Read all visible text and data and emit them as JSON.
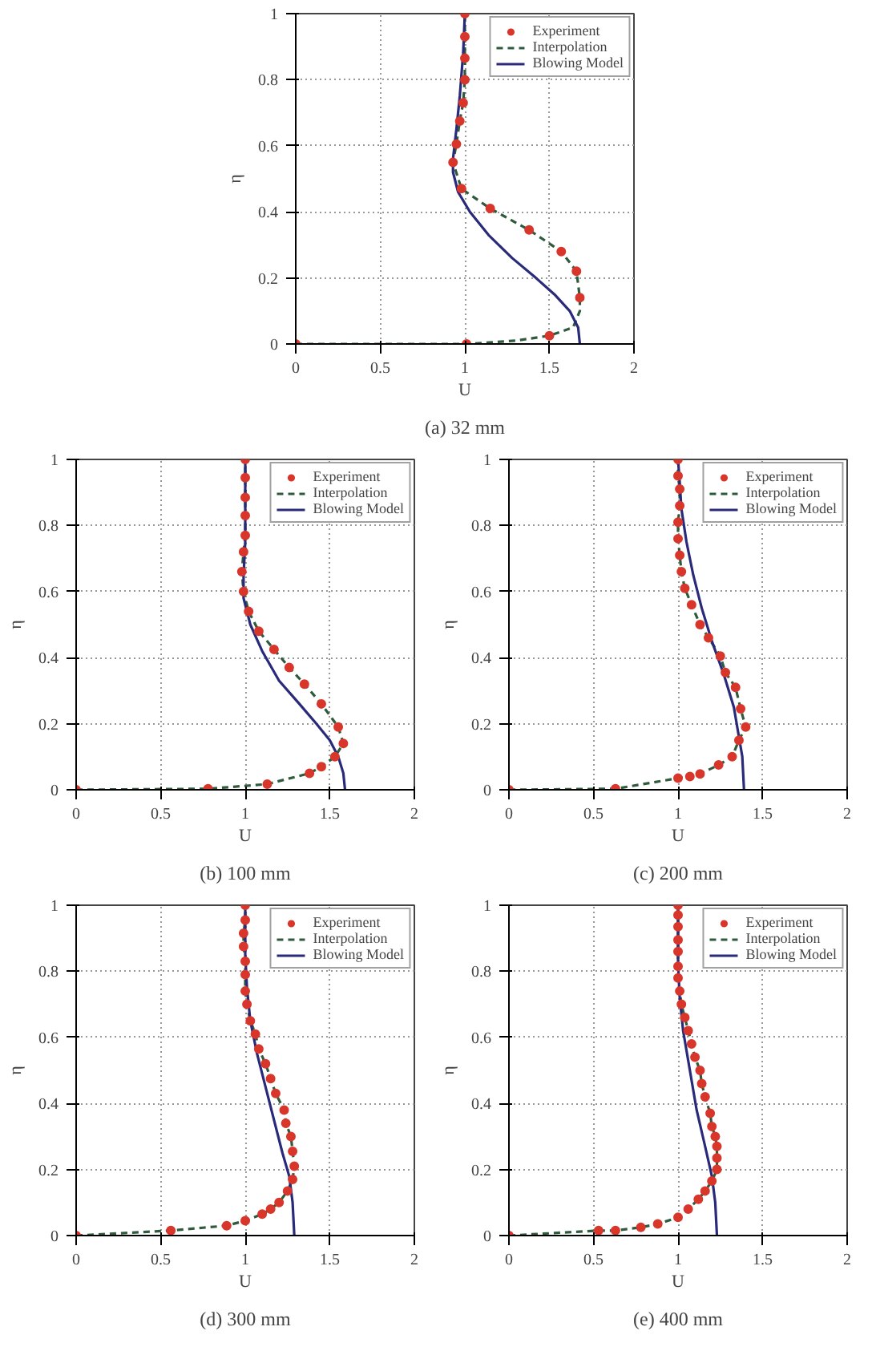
{
  "chart_data": [
    {
      "type": "line",
      "title": "(a) 32 mm",
      "xlabel": "U",
      "ylabel": "η",
      "xlim": [
        0,
        2
      ],
      "ylim": [
        0,
        1
      ],
      "xticks": [
        0,
        0.5,
        1,
        1.5,
        2
      ],
      "yticks": [
        0,
        0.2,
        0.4,
        0.6,
        0.8,
        1
      ],
      "grid": true,
      "legend": "top right",
      "series": [
        {
          "name": "Experiment",
          "type": "scatter",
          "marker": "circle",
          "color": "#d9362b",
          "x": [
            0,
            1.01,
            1.5,
            1.68,
            1.66,
            1.57,
            1.38,
            1.15,
            0.98,
            0.93,
            0.95,
            0.97,
            0.99,
            1.0,
            1.0,
            1.0,
            1.0
          ],
          "values": [
            0,
            0,
            0.025,
            0.14,
            0.22,
            0.28,
            0.345,
            0.41,
            0.47,
            0.55,
            0.605,
            0.675,
            0.73,
            0.8,
            0.865,
            0.93,
            1.0
          ]
        },
        {
          "name": "Interpolation",
          "type": "line",
          "line_style": "dashed",
          "color": "#2f5a3c",
          "x": [
            0,
            1.01,
            1.3,
            1.5,
            1.64,
            1.68,
            1.68,
            1.66,
            1.57,
            1.38,
            1.15,
            0.98,
            0.93,
            0.95,
            0.97,
            0.99,
            1.0,
            1.0,
            1.0,
            1.0
          ],
          "values": [
            0,
            0,
            0.01,
            0.025,
            0.05,
            0.1,
            0.14,
            0.22,
            0.28,
            0.345,
            0.41,
            0.47,
            0.55,
            0.605,
            0.675,
            0.73,
            0.8,
            0.865,
            0.93,
            1.0
          ]
        },
        {
          "name": "Blowing Model",
          "type": "line",
          "line_style": "solid",
          "color": "#2a2a7a",
          "x": [
            1.68,
            1.67,
            1.62,
            1.53,
            1.42,
            1.28,
            1.14,
            1.03,
            0.96,
            0.93,
            0.93,
            0.95,
            0.97,
            0.99,
            1.0
          ],
          "values": [
            0,
            0.05,
            0.1,
            0.15,
            0.2,
            0.26,
            0.33,
            0.4,
            0.46,
            0.52,
            0.56,
            0.65,
            0.75,
            0.88,
            1.0
          ]
        }
      ]
    },
    {
      "type": "line",
      "title": "(b) 100 mm",
      "xlabel": "U",
      "ylabel": "η",
      "xlim": [
        0,
        2
      ],
      "ylim": [
        0,
        1
      ],
      "xticks": [
        0,
        0.5,
        1,
        1.5,
        2
      ],
      "yticks": [
        0,
        0.2,
        0.4,
        0.6,
        0.8,
        1
      ],
      "grid": true,
      "legend": "top right",
      "series": [
        {
          "name": "Experiment",
          "type": "scatter",
          "marker": "circle",
          "color": "#d9362b",
          "x": [
            0,
            0.78,
            1.13,
            1.38,
            1.45,
            1.53,
            1.58,
            1.55,
            1.45,
            1.35,
            1.26,
            1.17,
            1.08,
            1.02,
            0.99,
            0.98,
            0.99,
            1.0,
            1.0,
            1.0,
            1.0,
            1.0
          ],
          "values": [
            0,
            0.003,
            0.017,
            0.05,
            0.07,
            0.1,
            0.14,
            0.19,
            0.26,
            0.32,
            0.37,
            0.425,
            0.48,
            0.54,
            0.6,
            0.66,
            0.72,
            0.77,
            0.83,
            0.885,
            0.945,
            1.0
          ]
        },
        {
          "name": "Interpolation",
          "type": "line",
          "line_style": "dashed",
          "color": "#2f5a3c",
          "x": [
            0,
            0.78,
            1.13,
            1.38,
            1.45,
            1.53,
            1.58,
            1.55,
            1.45,
            1.35,
            1.26,
            1.17,
            1.08,
            1.02,
            0.99,
            0.98,
            0.99,
            1.0,
            1.0,
            1.0,
            1.0,
            1.0
          ],
          "values": [
            0,
            0.003,
            0.017,
            0.05,
            0.07,
            0.1,
            0.14,
            0.19,
            0.26,
            0.32,
            0.37,
            0.425,
            0.48,
            0.54,
            0.6,
            0.66,
            0.72,
            0.77,
            0.83,
            0.885,
            0.945,
            1.0
          ]
        },
        {
          "name": "Blowing Model",
          "type": "line",
          "line_style": "solid",
          "color": "#2a2a7a",
          "x": [
            1.59,
            1.58,
            1.55,
            1.5,
            1.42,
            1.32,
            1.2,
            1.1,
            1.03,
            0.99,
            0.99,
            1.0,
            1.0
          ],
          "values": [
            0,
            0.05,
            0.1,
            0.15,
            0.2,
            0.26,
            0.33,
            0.42,
            0.5,
            0.58,
            0.65,
            0.75,
            1.0
          ]
        }
      ]
    },
    {
      "type": "line",
      "title": "(c) 200 mm",
      "xlabel": "U",
      "ylabel": "η",
      "xlim": [
        0,
        2
      ],
      "ylim": [
        0,
        1
      ],
      "xticks": [
        0,
        0.5,
        1,
        1.5,
        2
      ],
      "yticks": [
        0,
        0.2,
        0.4,
        0.6,
        0.8,
        1
      ],
      "grid": true,
      "legend": "top right",
      "series": [
        {
          "name": "Experiment",
          "type": "scatter",
          "marker": "circle",
          "color": "#d9362b",
          "x": [
            0,
            0.63,
            1.0,
            1.07,
            1.13,
            1.24,
            1.32,
            1.36,
            1.4,
            1.37,
            1.34,
            1.28,
            1.25,
            1.18,
            1.13,
            1.08,
            1.04,
            1.02,
            1.01,
            1.0,
            1.0,
            1.01,
            1.01,
            1.0,
            1.0
          ],
          "values": [
            0,
            0.003,
            0.035,
            0.04,
            0.048,
            0.075,
            0.1,
            0.15,
            0.19,
            0.245,
            0.31,
            0.355,
            0.405,
            0.46,
            0.5,
            0.56,
            0.61,
            0.66,
            0.71,
            0.76,
            0.81,
            0.86,
            0.91,
            0.95,
            1.0
          ]
        },
        {
          "name": "Interpolation",
          "type": "line",
          "line_style": "dashed",
          "color": "#2f5a3c",
          "x": [
            0,
            0.63,
            1.0,
            1.07,
            1.13,
            1.24,
            1.32,
            1.36,
            1.4,
            1.37,
            1.34,
            1.28,
            1.25,
            1.18,
            1.13,
            1.08,
            1.04,
            1.02,
            1.01,
            1.0,
            1.0,
            1.01,
            1.01,
            1.0,
            1.0
          ],
          "values": [
            0,
            0.003,
            0.035,
            0.04,
            0.048,
            0.075,
            0.1,
            0.15,
            0.19,
            0.245,
            0.31,
            0.355,
            0.405,
            0.46,
            0.5,
            0.56,
            0.61,
            0.66,
            0.71,
            0.76,
            0.81,
            0.86,
            0.91,
            0.95,
            1.0
          ]
        },
        {
          "name": "Blowing Model",
          "type": "line",
          "line_style": "solid",
          "color": "#2a2a7a",
          "x": [
            1.39,
            1.38,
            1.36,
            1.33,
            1.27,
            1.2,
            1.14,
            1.09,
            1.05,
            1.02,
            1.01,
            1.0
          ],
          "values": [
            0,
            0.1,
            0.16,
            0.25,
            0.35,
            0.45,
            0.55,
            0.65,
            0.75,
            0.85,
            0.93,
            1.0
          ]
        }
      ]
    },
    {
      "type": "line",
      "title": "(d) 300 mm",
      "xlabel": "U",
      "ylabel": "η",
      "xlim": [
        0,
        2
      ],
      "ylim": [
        0,
        1
      ],
      "xticks": [
        0,
        0.5,
        1,
        1.5,
        2
      ],
      "yticks": [
        0,
        0.2,
        0.4,
        0.6,
        0.8,
        1
      ],
      "grid": true,
      "legend": "top right",
      "series": [
        {
          "name": "Experiment",
          "type": "scatter",
          "marker": "circle",
          "color": "#d9362b",
          "x": [
            0,
            0.56,
            0.89,
            1.0,
            1.1,
            1.15,
            1.2,
            1.25,
            1.28,
            1.29,
            1.28,
            1.27,
            1.24,
            1.23,
            1.18,
            1.15,
            1.12,
            1.08,
            1.06,
            1.03,
            1.01,
            1.0,
            1.0,
            1.0,
            0.99,
            0.99,
            1.0,
            1.0
          ],
          "values": [
            0,
            0.015,
            0.03,
            0.045,
            0.065,
            0.08,
            0.1,
            0.135,
            0.17,
            0.21,
            0.255,
            0.3,
            0.34,
            0.38,
            0.43,
            0.475,
            0.52,
            0.565,
            0.61,
            0.65,
            0.7,
            0.74,
            0.79,
            0.83,
            0.875,
            0.915,
            0.955,
            1.0
          ]
        },
        {
          "name": "Interpolation",
          "type": "line",
          "line_style": "dashed",
          "color": "#2f5a3c",
          "x": [
            0,
            0.56,
            0.89,
            1.0,
            1.1,
            1.15,
            1.2,
            1.25,
            1.28,
            1.29,
            1.28,
            1.27,
            1.24,
            1.23,
            1.18,
            1.15,
            1.12,
            1.08,
            1.06,
            1.03,
            1.01,
            1.0,
            1.0,
            1.0,
            0.99,
            0.99,
            1.0,
            1.0
          ],
          "values": [
            0,
            0.015,
            0.03,
            0.045,
            0.065,
            0.08,
            0.1,
            0.135,
            0.17,
            0.21,
            0.255,
            0.3,
            0.34,
            0.38,
            0.43,
            0.475,
            0.52,
            0.565,
            0.61,
            0.65,
            0.7,
            0.74,
            0.79,
            0.83,
            0.875,
            0.915,
            0.955,
            1.0
          ]
        },
        {
          "name": "Blowing Model",
          "type": "line",
          "line_style": "solid",
          "color": "#2a2a7a",
          "x": [
            1.29,
            1.28,
            1.26,
            1.22,
            1.17,
            1.12,
            1.07,
            1.03,
            1.01,
            1.0,
            1.0
          ],
          "values": [
            0,
            0.1,
            0.18,
            0.25,
            0.35,
            0.45,
            0.55,
            0.65,
            0.75,
            0.85,
            1.0
          ]
        }
      ]
    },
    {
      "type": "line",
      "title": "(e) 400 mm",
      "xlabel": "U",
      "ylabel": "η",
      "xlim": [
        0,
        2
      ],
      "ylim": [
        0,
        1
      ],
      "xticks": [
        0,
        0.5,
        1,
        1.5,
        2
      ],
      "yticks": [
        0,
        0.2,
        0.4,
        0.6,
        0.8,
        1
      ],
      "grid": true,
      "legend": "top right",
      "series": [
        {
          "name": "Experiment",
          "type": "scatter",
          "marker": "circle",
          "color": "#d9362b",
          "x": [
            0,
            0.53,
            0.63,
            0.78,
            0.88,
            1.0,
            1.06,
            1.12,
            1.16,
            1.2,
            1.23,
            1.23,
            1.23,
            1.22,
            1.2,
            1.19,
            1.16,
            1.14,
            1.13,
            1.1,
            1.08,
            1.06,
            1.04,
            1.02,
            1.01,
            1.0,
            1.0,
            1.0,
            1.0,
            1.0,
            1.0,
            1.0
          ],
          "values": [
            0,
            0.015,
            0.015,
            0.025,
            0.035,
            0.055,
            0.08,
            0.11,
            0.135,
            0.165,
            0.2,
            0.235,
            0.27,
            0.3,
            0.33,
            0.37,
            0.42,
            0.46,
            0.5,
            0.54,
            0.58,
            0.62,
            0.66,
            0.7,
            0.74,
            0.78,
            0.815,
            0.86,
            0.895,
            0.935,
            0.97,
            1.0
          ]
        },
        {
          "name": "Interpolation",
          "type": "line",
          "line_style": "dashed",
          "color": "#2f5a3c",
          "x": [
            0,
            0.53,
            0.63,
            0.78,
            0.88,
            1.0,
            1.06,
            1.12,
            1.16,
            1.2,
            1.23,
            1.23,
            1.23,
            1.22,
            1.2,
            1.19,
            1.16,
            1.14,
            1.13,
            1.1,
            1.08,
            1.06,
            1.04,
            1.02,
            1.01,
            1.0,
            1.0,
            1.0,
            1.0,
            1.0,
            1.0,
            1.0
          ],
          "values": [
            0,
            0.015,
            0.015,
            0.025,
            0.035,
            0.055,
            0.08,
            0.11,
            0.135,
            0.165,
            0.2,
            0.235,
            0.27,
            0.3,
            0.33,
            0.37,
            0.42,
            0.46,
            0.5,
            0.54,
            0.58,
            0.62,
            0.66,
            0.7,
            0.74,
            0.78,
            0.815,
            0.86,
            0.895,
            0.935,
            0.97,
            1.0
          ]
        },
        {
          "name": "Blowing Model",
          "type": "line",
          "line_style": "solid",
          "color": "#2a2a7a",
          "x": [
            1.23,
            1.22,
            1.2,
            1.16,
            1.11,
            1.07,
            1.03,
            1.01,
            1.0,
            1.0
          ],
          "values": [
            0,
            0.1,
            0.18,
            0.27,
            0.38,
            0.5,
            0.62,
            0.72,
            0.82,
            1.0
          ]
        }
      ]
    }
  ]
}
